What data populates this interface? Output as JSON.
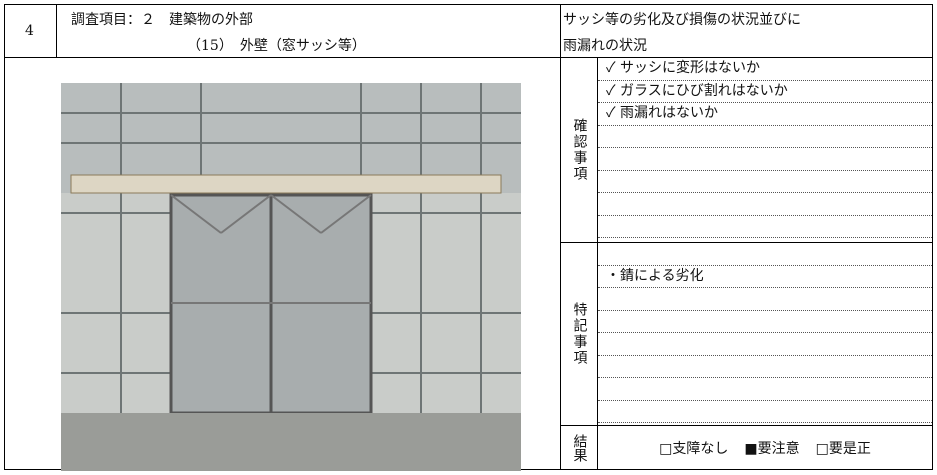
{
  "header": {
    "number": "4",
    "survey_item": [
      "調査項目：２　建築物の外部",
      "（15）　外壁（窓サッシ等）"
    ],
    "target": [
      "サッシ等の劣化及び損傷の状況並びに",
      "雨漏れの状況"
    ]
  },
  "check": {
    "label": "確認事項",
    "items": [
      "✓ サッシに変形はないか",
      "✓ ガラスにひび割れはないか",
      "✓ 雨漏れはないか"
    ]
  },
  "remarks": {
    "label": "特記事項",
    "items": [
      "・錆による劣化"
    ]
  },
  "result": {
    "label": "結果",
    "options": [
      "□支障なし",
      "■要注意",
      "□要是正"
    ]
  }
}
